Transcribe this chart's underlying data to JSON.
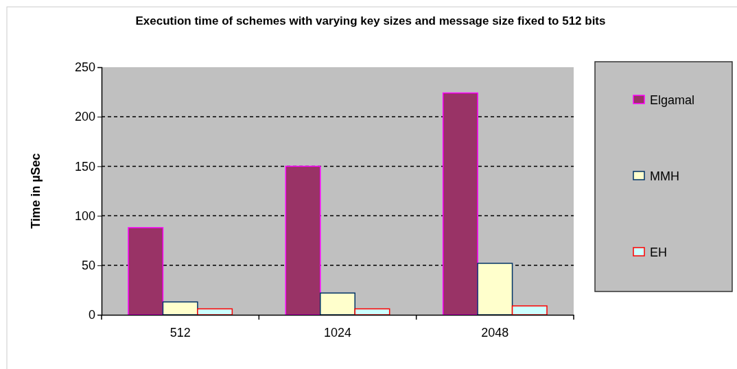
{
  "chart_data": {
    "type": "bar",
    "title": "Execution time of schemes with varying key sizes and message size fixed to 512 bits",
    "ylabel": "Time in µSec",
    "categories": [
      "512",
      "1024",
      "2048"
    ],
    "series": [
      {
        "name": "Elgamal",
        "color": "#993366",
        "values": [
          88,
          150,
          224
        ]
      },
      {
        "name": "MMH",
        "color": "#ffffcc",
        "values": [
          13,
          22,
          52
        ]
      },
      {
        "name": "EH",
        "color": "#ccffff",
        "values": [
          6,
          6,
          9
        ]
      }
    ],
    "ylim": [
      0,
      250
    ],
    "yticks": [
      0,
      50,
      100,
      150,
      200,
      250
    ],
    "grid": "y",
    "legend": "right"
  }
}
